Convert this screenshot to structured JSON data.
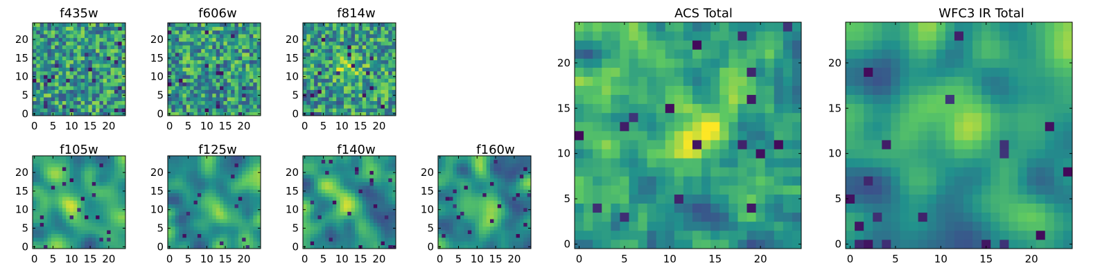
{
  "figure": {
    "colormap": "viridis",
    "colormap_stops": [
      "#440154",
      "#3b528b",
      "#21918c",
      "#5ec962",
      "#fde725"
    ]
  },
  "chart_data": [
    {
      "type": "heatmap",
      "title": "f435w",
      "grid_size": 25,
      "xticks": [
        "0",
        "5",
        "10",
        "15",
        "20"
      ],
      "yticks": [
        "0",
        "5",
        "10",
        "15",
        "20"
      ],
      "texture": "noise",
      "peak": null
    },
    {
      "type": "heatmap",
      "title": "f606w",
      "grid_size": 25,
      "xticks": [
        "0",
        "5",
        "10",
        "15",
        "20"
      ],
      "yticks": [
        "0",
        "5",
        "10",
        "15",
        "20"
      ],
      "texture": "noise",
      "peak": null
    },
    {
      "type": "heatmap",
      "title": "f814w",
      "grid_size": 25,
      "xticks": [
        "0",
        "5",
        "10",
        "15",
        "20"
      ],
      "yticks": [
        "0",
        "5",
        "10",
        "15",
        "20"
      ],
      "texture": "noise",
      "peak": [
        12,
        12
      ]
    },
    {
      "type": "heatmap",
      "title": "f105w",
      "grid_size": 25,
      "xticks": [
        "0",
        "5",
        "10",
        "15",
        "20"
      ],
      "yticks": [
        "0",
        "5",
        "10",
        "15",
        "20"
      ],
      "texture": "smooth",
      "peak": [
        11,
        12
      ]
    },
    {
      "type": "heatmap",
      "title": "f125w",
      "grid_size": 25,
      "xticks": [
        "0",
        "5",
        "10",
        "15",
        "20"
      ],
      "yticks": [
        "0",
        "5",
        "10",
        "15",
        "20"
      ],
      "texture": "smooth",
      "peak": [
        11,
        12
      ]
    },
    {
      "type": "heatmap",
      "title": "f140w",
      "grid_size": 25,
      "xticks": [
        "0",
        "5",
        "10",
        "15",
        "20"
      ],
      "yticks": [
        "0",
        "5",
        "10",
        "15",
        "20"
      ],
      "texture": "smooth",
      "peak": [
        10,
        12
      ]
    },
    {
      "type": "heatmap",
      "title": "f160w",
      "grid_size": 25,
      "xticks": [
        "0",
        "5",
        "10",
        "15",
        "20"
      ],
      "yticks": [
        "0",
        "5",
        "10",
        "15",
        "20"
      ],
      "texture": "smooth",
      "peak": [
        13,
        9
      ]
    },
    {
      "type": "heatmap",
      "title": "ACS Total",
      "grid_size": 25,
      "xticks": [
        "0",
        "5",
        "10",
        "15",
        "20"
      ],
      "yticks": [
        "0",
        "5",
        "10",
        "15",
        "20"
      ],
      "texture": "medium",
      "peak": [
        13,
        12
      ]
    },
    {
      "type": "heatmap",
      "title": "WFC3 IR Total",
      "grid_size": 25,
      "xticks": [
        "0",
        "5",
        "10",
        "15",
        "20"
      ],
      "yticks": [
        "0",
        "5",
        "10",
        "15",
        "20"
      ],
      "texture": "smooth",
      "peak": [
        12,
        12
      ]
    }
  ]
}
